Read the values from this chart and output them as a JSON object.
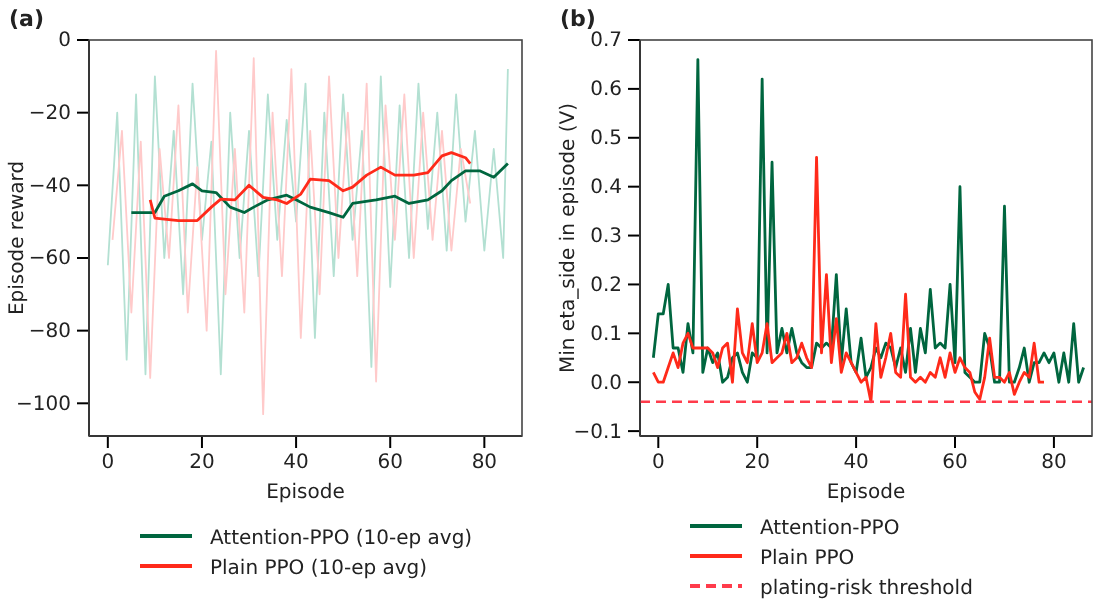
{
  "chart_data": [
    {
      "type": "line",
      "title": "(a)",
      "xlabel": "Episode",
      "ylabel": "Episode reward",
      "xlim": [
        -4,
        88
      ],
      "ylim": [
        -109,
        0
      ],
      "xticks": [
        0,
        20,
        40,
        60,
        80
      ],
      "yticks": [
        {
          "value": -100,
          "label": "−100"
        },
        {
          "value": -80,
          "label": "−80"
        },
        {
          "value": -60,
          "label": "−60"
        },
        {
          "value": -40,
          "label": "−40"
        },
        {
          "value": -20,
          "label": "−20"
        },
        0
      ],
      "legend": "bottom",
      "series": [
        {
          "color": "#b3e0d2",
          "x": [
            0,
            2,
            4,
            6,
            8,
            10,
            12,
            14,
            16,
            18,
            20,
            22,
            24,
            26,
            28,
            30,
            32,
            34,
            36,
            38,
            40,
            42,
            44,
            46,
            48,
            50,
            52,
            54,
            56,
            58,
            60,
            62,
            64,
            66,
            68,
            70,
            72,
            74,
            76,
            78,
            80,
            82,
            84,
            85
          ],
          "values": [
            -62,
            -20,
            -88,
            -15,
            -92,
            -10,
            -60,
            -25,
            -70,
            -12,
            -55,
            -28,
            -92,
            -20,
            -60,
            -25,
            -65,
            -15,
            -55,
            -22,
            -50,
            -12,
            -82,
            -20,
            -65,
            -15,
            -55,
            -25,
            -90,
            -10,
            -68,
            -18,
            -60,
            -12,
            -52,
            -20,
            -58,
            -15,
            -50,
            -25,
            -58,
            -30,
            -60,
            -8
          ]
        },
        {
          "color": "#ffcaca",
          "x": [
            1,
            3,
            5,
            7,
            9,
            11,
            13,
            15,
            17,
            19,
            21,
            23,
            25,
            27,
            29,
            31,
            33,
            35,
            37,
            39,
            41,
            43,
            45,
            47,
            49,
            51,
            53,
            55,
            57,
            59,
            61,
            63,
            65,
            67,
            69,
            71,
            73,
            75,
            77
          ],
          "values": [
            -55,
            -25,
            -75,
            -28,
            -93,
            -30,
            -60,
            -18,
            -75,
            -35,
            -80,
            -3,
            -70,
            -30,
            -75,
            -5,
            -103,
            -20,
            -65,
            -8,
            -82,
            -25,
            -70,
            -10,
            -60,
            -20,
            -65,
            -12,
            -94,
            -18,
            -55,
            -15,
            -60,
            -20,
            -55,
            -25,
            -58,
            -30,
            -45
          ]
        },
        {
          "name": "Attention-PPO (10-ep avg)",
          "color": "#00663f",
          "x": [
            5,
            10,
            12,
            15,
            18,
            20,
            23,
            26,
            29,
            31,
            34,
            38,
            40,
            43,
            47,
            50,
            52,
            57,
            61,
            64,
            68,
            71,
            73,
            76,
            79,
            82,
            85
          ],
          "values": [
            -47.5,
            -47.5,
            -43,
            -41.5,
            -39.6,
            -41.5,
            -42,
            -46,
            -47.5,
            -46,
            -44,
            -42.7,
            -44,
            -46,
            -47.5,
            -48.8,
            -45,
            -44,
            -43,
            -45,
            -44,
            -41.5,
            -38.7,
            -36,
            -36,
            -37.8,
            -34
          ]
        },
        {
          "name": "Plain PPO (10-ep avg)",
          "color": "#ff2a1a",
          "x": [
            9,
            10,
            15,
            19,
            22,
            24,
            27,
            30,
            33,
            36,
            38,
            41,
            43,
            47,
            50,
            52,
            55,
            58,
            61,
            65,
            68,
            71,
            73,
            76,
            77
          ],
          "values": [
            -44,
            -49,
            -49.7,
            -49.7,
            -46,
            -43.8,
            -44,
            -40,
            -43.3,
            -44,
            -45,
            -42.4,
            -38.3,
            -38.7,
            -41.5,
            -40.5,
            -37.2,
            -35,
            -37.2,
            -37.2,
            -36.5,
            -31.9,
            -31,
            -32.4,
            -34
          ]
        }
      ]
    },
    {
      "type": "line",
      "title": "(b)",
      "xlabel": "Episode",
      "ylabel": "Min eta_side in episode (V)",
      "xlim": [
        -3.7,
        87.7
      ],
      "ylim": [
        -0.11,
        0.7
      ],
      "xticks": [
        0,
        20,
        40,
        60,
        80
      ],
      "yticks": [
        {
          "value": -0.1,
          "label": "−0.1"
        },
        {
          "value": 0,
          "label": "0.0"
        },
        0.1,
        0.2,
        0.3,
        0.4,
        0.5,
        0.6,
        0.7
      ],
      "legend": "bottom",
      "ref_lines": [
        {
          "axis": "y",
          "value": -0.04,
          "label": "plating-risk threshold",
          "color": "#ff3b4b",
          "line_style": "dashed"
        }
      ],
      "series": [
        {
          "name": "Attention-PPO",
          "color": "#00663f",
          "x": [
            -1,
            0,
            1,
            2,
            3,
            4,
            5,
            6,
            7,
            8,
            9,
            10,
            11,
            12,
            13,
            14,
            15,
            16,
            17,
            18,
            19,
            20,
            21,
            22,
            23,
            24,
            25,
            26,
            27,
            28,
            29,
            30,
            31,
            32,
            33,
            34,
            35,
            36,
            37,
            38,
            39,
            40,
            41,
            42,
            43,
            44,
            45,
            46,
            47,
            48,
            49,
            50,
            51,
            52,
            53,
            54,
            55,
            56,
            57,
            58,
            59,
            60,
            61,
            62,
            63,
            64,
            65,
            66,
            67,
            68,
            69,
            70,
            71,
            72,
            73,
            74,
            75,
            76,
            77,
            78,
            79,
            80,
            81,
            82,
            83,
            84,
            85,
            86
          ],
          "values": [
            0.05,
            0.14,
            0.14,
            0.2,
            0.07,
            0.07,
            0.02,
            0.12,
            0.06,
            0.66,
            0.02,
            0.07,
            0.04,
            0.06,
            0.0,
            0.01,
            0.05,
            0.06,
            0.02,
            0.0,
            0.06,
            0.05,
            0.62,
            0.06,
            0.45,
            0.06,
            0.11,
            0.06,
            0.11,
            0.06,
            0.04,
            0.03,
            0.03,
            0.08,
            0.07,
            0.08,
            0.07,
            0.22,
            0.04,
            0.15,
            0.04,
            0.02,
            0.09,
            0.01,
            0.03,
            0.07,
            0.05,
            0.08,
            0.07,
            0.03,
            0.07,
            0.02,
            0.11,
            0.02,
            0.11,
            0.06,
            0.19,
            0.07,
            0.08,
            0.07,
            0.2,
            0.04,
            0.4,
            0.02,
            0.01,
            0.0,
            0.0,
            0.1,
            0.07,
            0.0,
            0.0,
            0.36,
            0.0,
            0.0,
            0.03,
            0.07,
            0.0,
            0.04,
            0.04,
            0.06,
            0.04,
            0.06,
            0.0,
            0.06,
            0.0,
            0.12,
            0.0,
            0.03
          ]
        },
        {
          "name": "Plain PPO",
          "color": "#ff2a1a",
          "x": [
            -1,
            0,
            1,
            2,
            3,
            4,
            5,
            6,
            7,
            8,
            9,
            10,
            11,
            12,
            13,
            14,
            15,
            16,
            17,
            18,
            19,
            20,
            21,
            22,
            23,
            24,
            25,
            26,
            27,
            28,
            29,
            30,
            31,
            32,
            33,
            34,
            35,
            36,
            37,
            38,
            39,
            40,
            41,
            42,
            43,
            44,
            45,
            46,
            47,
            48,
            49,
            50,
            51,
            52,
            53,
            54,
            55,
            56,
            57,
            58,
            59,
            60,
            61,
            62,
            63,
            64,
            65,
            66,
            67,
            68,
            69,
            70,
            71,
            72,
            73,
            74,
            75,
            76,
            77,
            78
          ],
          "values": [
            0.02,
            0.0,
            0.0,
            0.03,
            0.06,
            0.03,
            0.08,
            0.1,
            0.07,
            0.07,
            0.07,
            0.07,
            0.06,
            0.03,
            0.07,
            0.08,
            0.0,
            0.15,
            0.06,
            0.04,
            0.12,
            0.04,
            0.06,
            0.12,
            0.04,
            0.05,
            0.06,
            0.1,
            0.04,
            0.05,
            0.08,
            0.05,
            0.03,
            0.46,
            0.06,
            0.22,
            0.04,
            0.13,
            0.02,
            0.06,
            0.04,
            0.02,
            0.0,
            0.01,
            -0.04,
            0.12,
            0.01,
            0.05,
            0.1,
            0.02,
            0.01,
            0.18,
            0.01,
            0.0,
            0.01,
            0.0,
            0.02,
            0.01,
            0.05,
            0.01,
            0.06,
            0.02,
            0.05,
            0.03,
            0.02,
            -0.02,
            -0.035,
            0.01,
            0.09,
            0.01,
            0.01,
            0.0,
            0.02,
            -0.025,
            0.0,
            0.02,
            0.01,
            0.08,
            0.0,
            0.0
          ]
        }
      ]
    }
  ]
}
